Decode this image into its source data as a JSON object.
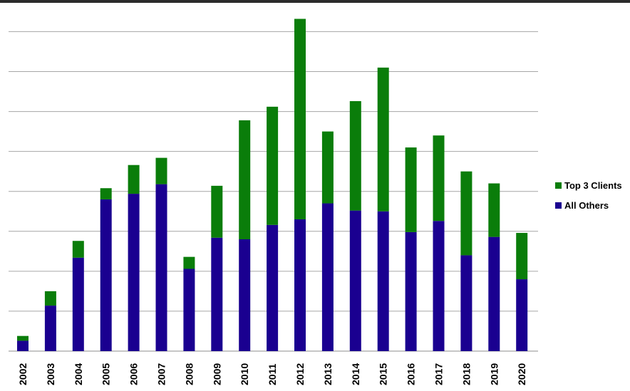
{
  "chart_data": {
    "type": "bar",
    "stacked": true,
    "categories": [
      "2002",
      "2003",
      "2004",
      "2005",
      "2006",
      "2007",
      "2008",
      "2009",
      "2010",
      "2011",
      "2012",
      "2013",
      "2014",
      "2015",
      "2016",
      "2017",
      "2018",
      "2019",
      "2020"
    ],
    "series": [
      {
        "name": "All Others",
        "color": "#1a0090",
        "values": [
          2.6,
          11.4,
          23.4,
          38.0,
          39.4,
          41.8,
          20.6,
          28.4,
          28.0,
          31.6,
          33.0,
          37.0,
          35.2,
          35.0,
          29.8,
          32.6,
          24.0,
          28.6,
          18.0
        ]
      },
      {
        "name": "Top 3 Clients",
        "color": "#0a7d0a",
        "values": [
          1.2,
          3.6,
          4.2,
          2.8,
          7.2,
          6.6,
          3.0,
          13.0,
          29.8,
          29.6,
          50.2,
          18.0,
          27.4,
          36.0,
          21.2,
          21.4,
          21.0,
          13.4,
          11.6
        ]
      }
    ],
    "ylim": [
      0,
      84
    ],
    "y_gridline_step": 10,
    "grid": true,
    "legend_placement": "right",
    "y_tick_labels_shown": false,
    "title": "",
    "xlabel": "",
    "ylabel": ""
  }
}
